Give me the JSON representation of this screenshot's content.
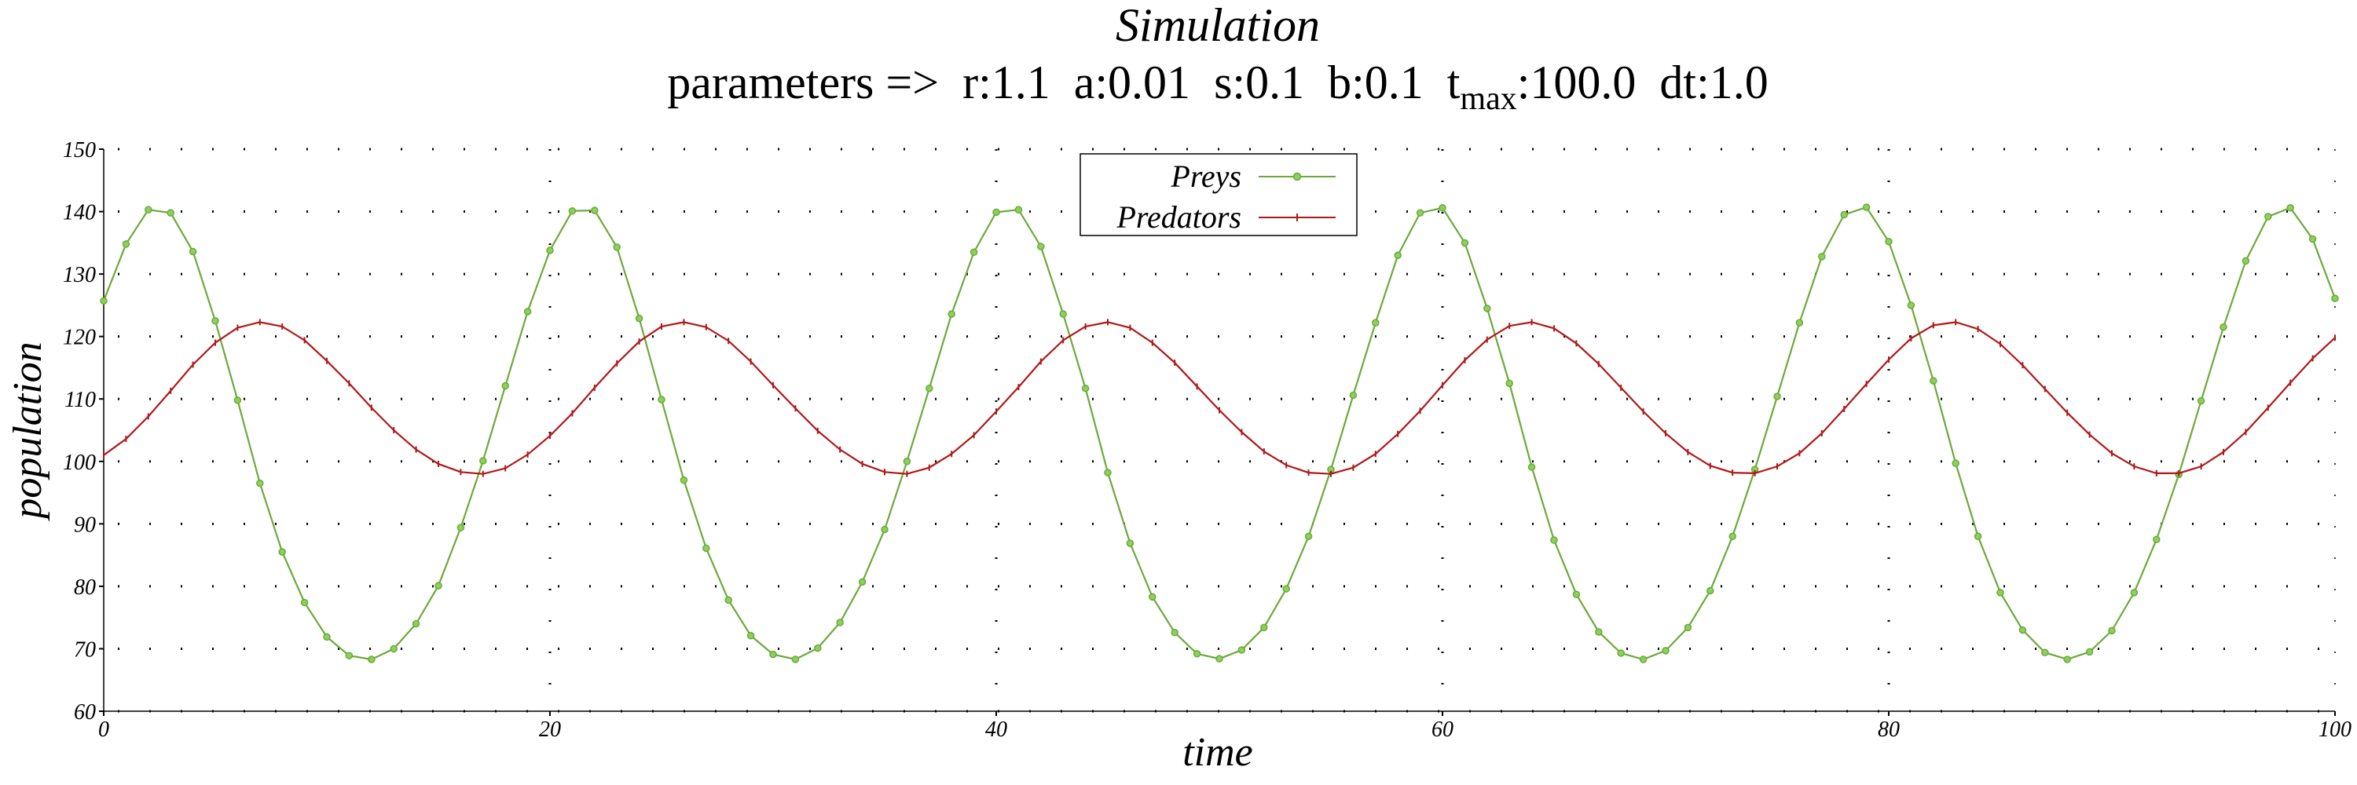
{
  "chart_data": {
    "type": "line",
    "title": "Simulation",
    "subtitle": {
      "prefix": "parameters =>",
      "r": "r:1.1",
      "a": "a:0.01",
      "s": "s:0.1",
      "b": "b:0.1",
      "tmax_base": "t",
      "tmax_sub": "max",
      "tmax_value": ":100.0",
      "dt": "dt:1.0"
    },
    "xlabel": "time",
    "ylabel": "population",
    "xlim": [
      0,
      100
    ],
    "ylim": [
      60,
      150
    ],
    "x_ticks": [
      "0",
      "20",
      "40",
      "60",
      "80",
      "100"
    ],
    "y_ticks": [
      "60",
      "70",
      "80",
      "90",
      "100",
      "110",
      "120",
      "130",
      "140",
      "150"
    ],
    "grid": true,
    "legend_position": "top-center",
    "x": [
      0,
      1,
      2,
      3,
      4,
      5,
      6,
      7,
      8,
      9,
      10,
      11,
      12,
      13,
      14,
      15,
      16,
      17,
      18,
      19,
      20,
      21,
      22,
      23,
      24,
      25,
      26,
      27,
      28,
      29,
      30,
      31,
      32,
      33,
      34,
      35,
      36,
      37,
      38,
      39,
      40,
      41,
      42,
      43,
      44,
      45,
      46,
      47,
      48,
      49,
      50,
      51,
      52,
      53,
      54,
      55,
      56,
      57,
      58,
      59,
      60,
      61,
      62,
      63,
      64,
      65,
      66,
      67,
      68,
      69,
      70,
      71,
      72,
      73,
      74,
      75,
      76,
      77,
      78,
      79,
      80,
      81,
      82,
      83,
      84,
      85,
      86,
      87,
      88,
      89,
      90,
      91,
      92,
      93,
      94,
      95,
      96,
      97,
      98,
      99,
      100
    ],
    "series": [
      {
        "name": "Preys",
        "color": "#6aaa3a",
        "marker": "circle",
        "values": [
          125.7,
          134.8,
          140.3,
          139.8,
          133.6,
          122.5,
          109.8,
          96.5,
          85.5,
          77.4,
          71.9,
          68.9,
          68.3,
          70.0,
          74.0,
          80.1,
          89.4,
          100.1,
          112.1,
          124.0,
          133.8,
          140.1,
          140.2,
          134.3,
          122.9,
          109.9,
          97.0,
          86.1,
          77.8,
          72.1,
          69.1,
          68.3,
          70.1,
          74.2,
          80.7,
          89.1,
          100.0,
          111.7,
          123.6,
          133.5,
          139.9,
          140.3,
          134.4,
          123.6,
          111.7,
          98.2,
          86.9,
          78.3,
          72.6,
          69.2,
          68.4,
          69.8,
          73.4,
          79.6,
          88.0,
          98.7,
          110.6,
          122.2,
          133.0,
          139.8,
          140.6,
          135.0,
          124.5,
          112.5,
          99.1,
          87.4,
          78.7,
          72.7,
          69.3,
          68.3,
          69.7,
          73.4,
          79.3,
          88.0,
          98.7,
          110.4,
          122.2,
          132.8,
          139.5,
          140.7,
          135.2,
          125.0,
          112.9,
          99.7,
          88.0,
          79.0,
          73.0,
          69.4,
          68.3,
          69.5,
          72.9,
          79.0,
          87.5,
          97.9,
          109.7,
          121.5,
          132.1,
          139.2,
          140.6,
          135.6,
          126.1
        ]
      },
      {
        "name": "Predators",
        "color": "#b01818",
        "marker": "tick",
        "values": [
          101.0,
          103.6,
          107.2,
          111.3,
          115.5,
          119.0,
          121.4,
          122.3,
          121.6,
          119.4,
          116.1,
          112.5,
          108.6,
          105.0,
          101.9,
          99.6,
          98.3,
          98.0,
          98.9,
          101.1,
          104.1,
          107.7,
          111.8,
          115.7,
          119.2,
          121.6,
          122.3,
          121.5,
          119.3,
          116.0,
          112.2,
          108.5,
          104.9,
          101.9,
          99.6,
          98.3,
          98.0,
          99.0,
          101.2,
          104.2,
          108.0,
          111.9,
          116.0,
          119.4,
          121.6,
          122.3,
          121.4,
          119.0,
          115.8,
          112.0,
          108.2,
          104.7,
          101.6,
          99.4,
          98.2,
          98.0,
          99.0,
          101.2,
          104.4,
          108.1,
          112.2,
          116.2,
          119.5,
          121.7,
          122.3,
          121.3,
          118.9,
          115.6,
          111.8,
          108.0,
          104.5,
          101.5,
          99.3,
          98.2,
          98.1,
          99.2,
          101.3,
          104.5,
          108.4,
          112.4,
          116.3,
          119.7,
          121.8,
          122.3,
          121.2,
          118.8,
          115.4,
          111.6,
          107.8,
          104.3,
          101.3,
          99.2,
          98.1,
          98.1,
          99.2,
          101.5,
          104.7,
          108.6,
          112.6,
          116.5,
          119.8
        ]
      }
    ]
  }
}
